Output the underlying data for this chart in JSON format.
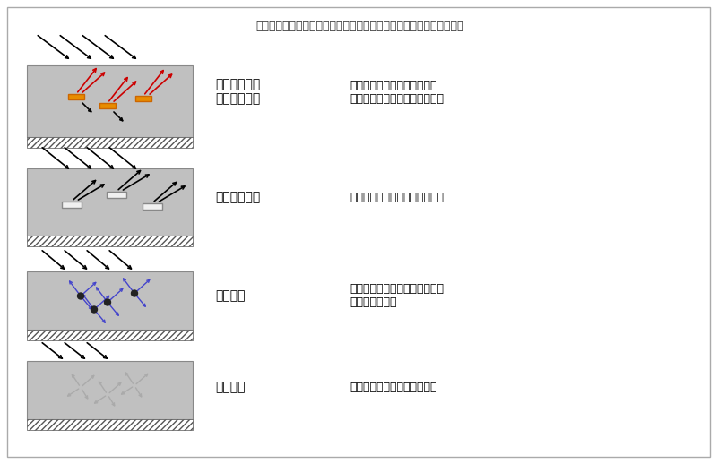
{
  "title": "可见光与应用系统（例如涂层）中不同颜料类型的颗粒的光学相互作用",
  "title_fontsize": 9,
  "bg_color": "#f5f5f5",
  "border_color": "#aaaaaa",
  "panel_bg": "#c8c8c8",
  "hatch_color": "#555555",
  "rows": [
    {
      "label": "特殊效果颜料\n（珠光颜料）",
      "desc": "由于光的干涉（折射和反射）\n形成特殊颜色、光泽、翻转效果",
      "type": "pearl"
    },
    {
      "label": "金属效果颜料",
      "desc": "由光的折射产生的金属光泽效果",
      "type": "metal"
    },
    {
      "label": "吸收颜料",
      "desc": "由光的吸收产生的特殊颜色效果\n（光的漫反射）",
      "type": "absorb"
    },
    {
      "label": "白色颜料",
      "desc": "由光的漫反射产生的白色效果",
      "type": "white"
    }
  ],
  "arrow_incoming_color": "#000000",
  "arrow_pearl_reflect_color": "#cc0000",
  "arrow_absorb_scatter_color": "#4444cc",
  "arrow_white_scatter_color": "#aaaaaa",
  "pigment_pearl_color": "#e88c00",
  "pigment_metal_color": "#e0e0e0",
  "label_fontsize": 10,
  "desc_fontsize": 9
}
